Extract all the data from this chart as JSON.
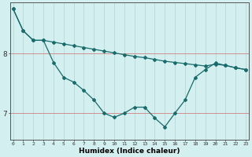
{
  "xlabel": "Humidex (Indice chaleur)",
  "bg_color": "#d4efef",
  "line_color": "#1a6b6b",
  "vgrid_color": "#b8d8d8",
  "hgrid_color": "#d08080",
  "x_ticks": [
    0,
    1,
    2,
    3,
    4,
    5,
    6,
    7,
    8,
    9,
    10,
    11,
    12,
    13,
    14,
    15,
    16,
    17,
    18,
    19,
    20,
    21,
    22,
    23
  ],
  "y_ticks": [
    7,
    8
  ],
  "xlim": [
    -0.3,
    23.3
  ],
  "ylim": [
    6.55,
    8.85
  ],
  "line1_x": [
    0,
    1,
    2,
    3,
    4,
    5,
    6,
    7,
    8,
    9,
    10,
    11,
    12,
    13,
    14,
    15,
    16,
    17,
    18,
    19,
    20,
    21,
    22,
    23
  ],
  "line1_y": [
    8.75,
    8.38,
    8.22,
    8.22,
    8.19,
    8.16,
    8.13,
    8.1,
    8.07,
    8.04,
    8.01,
    7.98,
    7.95,
    7.93,
    7.9,
    7.87,
    7.85,
    7.83,
    7.81,
    7.79,
    7.82,
    7.8,
    7.76,
    7.73
  ],
  "line2_x": [
    0,
    1,
    2,
    3,
    4,
    5,
    6,
    7,
    8,
    9,
    10,
    11,
    12,
    13,
    14,
    15,
    16,
    17,
    18,
    19,
    20,
    21,
    22,
    23
  ],
  "line2_y": [
    8.75,
    8.38,
    8.22,
    8.22,
    7.85,
    7.6,
    7.52,
    7.38,
    7.22,
    7.0,
    6.93,
    7.0,
    7.1,
    7.1,
    6.92,
    6.77,
    7.0,
    7.22,
    7.6,
    7.73,
    7.84,
    7.8,
    7.76,
    7.73
  ]
}
